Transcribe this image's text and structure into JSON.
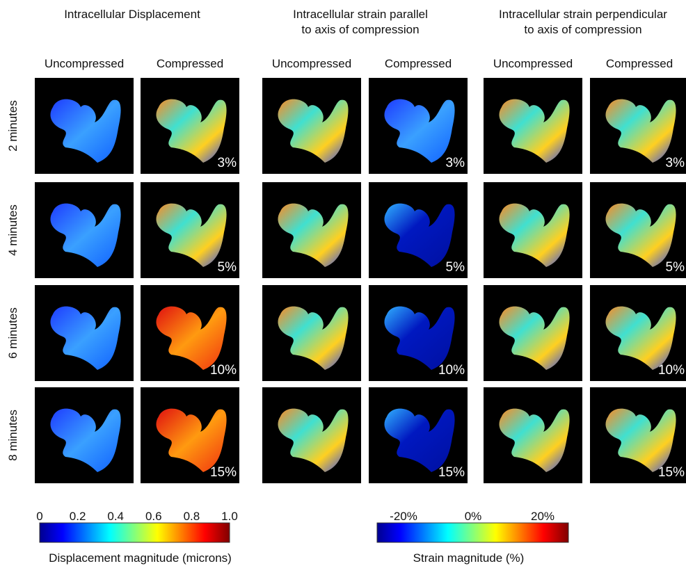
{
  "groups": [
    {
      "title": [
        "Intracellular Displacement"
      ],
      "columns": [
        "Uncompressed",
        "Compressed"
      ]
    },
    {
      "title": [
        "Intracellular strain parallel",
        "to axis of compression"
      ],
      "columns": [
        "Uncompressed",
        "Compressed"
      ]
    },
    {
      "title": [
        "Intracellular strain perpendicular",
        "to axis of compression"
      ],
      "columns": [
        "Uncompressed",
        "Compressed"
      ]
    }
  ],
  "rows": [
    {
      "label": "2 minutes",
      "compression": "3%"
    },
    {
      "label": "4 minutes",
      "compression": "5%"
    },
    {
      "label": "6 minutes",
      "compression": "10%"
    },
    {
      "label": "8 minutes",
      "compression": "15%"
    }
  ],
  "colorbars": [
    {
      "ticks": [
        "0",
        "0.2",
        "0.4",
        "0.6",
        "0.8",
        "1.0"
      ],
      "label": "Displacement magnitude (microns)"
    },
    {
      "ticks": [
        "-20%",
        "0%",
        "20%"
      ],
      "label": "Strain magnitude (%)"
    }
  ]
}
